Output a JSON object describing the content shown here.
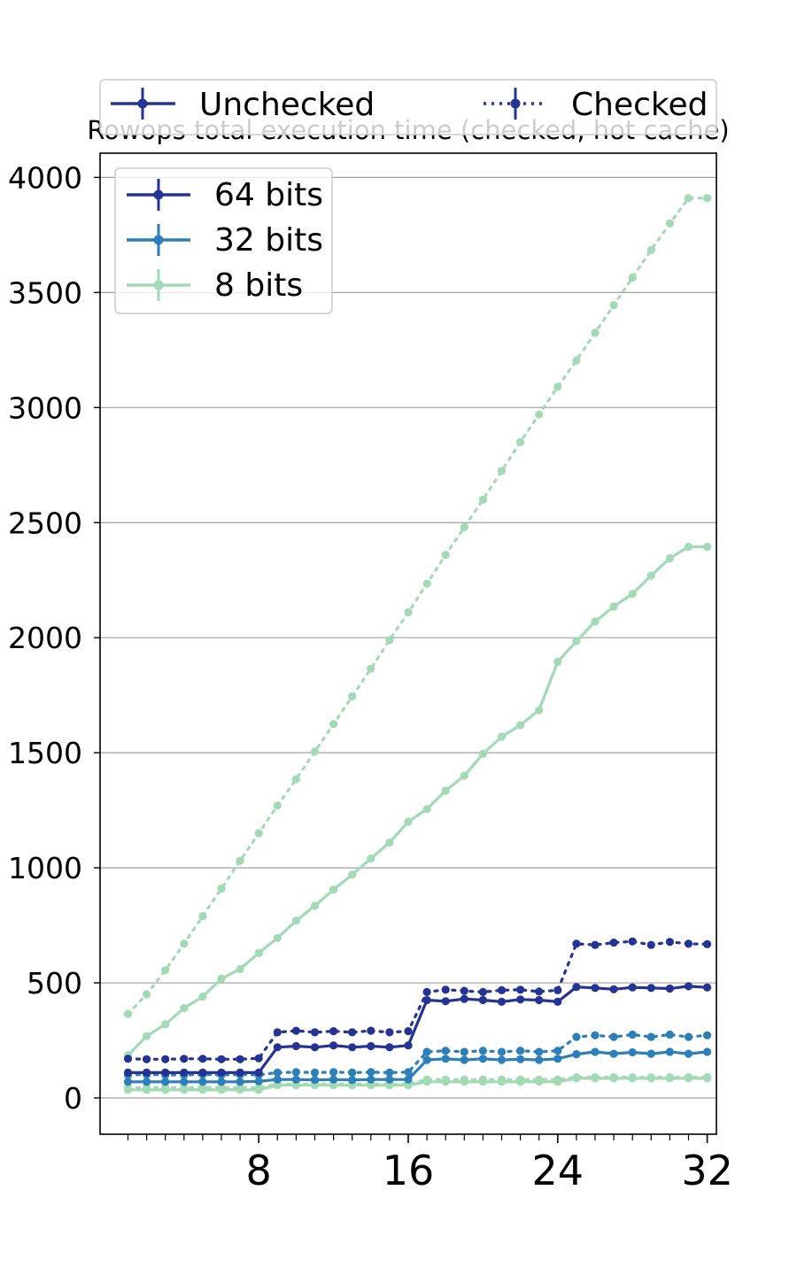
{
  "chart_data": {
    "type": "line",
    "title": "Rowops total execution time (checked, hot cache)",
    "xlabel": "",
    "ylabel": "",
    "xlim": [
      0,
      33
    ],
    "ylim": [
      -160,
      4100
    ],
    "x_ticks": [
      8,
      16,
      24,
      32
    ],
    "y_ticks": [
      0,
      500,
      1000,
      1500,
      2000,
      2500,
      3000,
      3500,
      4000
    ],
    "grid": "y",
    "x": [
      1,
      2,
      3,
      4,
      5,
      6,
      7,
      8,
      9,
      10,
      11,
      12,
      13,
      14,
      15,
      16,
      17,
      18,
      19,
      20,
      21,
      22,
      23,
      24,
      25,
      26,
      27,
      28,
      29,
      30,
      31,
      32
    ],
    "style_legend": {
      "placement": "top",
      "entries": [
        {
          "label": "Unchecked",
          "dash": "solid"
        },
        {
          "label": "Checked",
          "dash": "dotted"
        }
      ]
    },
    "size_legend": {
      "placement": "top-left",
      "entries": [
        {
          "label": "64 bits",
          "color": "#253494"
        },
        {
          "label": "32 bits",
          "color": "#2c7fb8"
        },
        {
          "label": "8 bits",
          "color": "#a1dab4"
        }
      ]
    },
    "series": [
      {
        "name": "64 bits",
        "mode": "Unchecked",
        "color": "#253494",
        "values": [
          110,
          110,
          110,
          110,
          110,
          110,
          110,
          110,
          220,
          225,
          220,
          228,
          220,
          225,
          220,
          228,
          425,
          420,
          430,
          425,
          418,
          428,
          425,
          418,
          482,
          478,
          472,
          480,
          478,
          475,
          485,
          480
        ]
      },
      {
        "name": "64 bits",
        "mode": "Checked",
        "color": "#253494",
        "values": [
          170,
          168,
          168,
          170,
          170,
          168,
          168,
          172,
          285,
          292,
          285,
          290,
          285,
          292,
          285,
          290,
          460,
          470,
          465,
          460,
          468,
          470,
          462,
          468,
          670,
          665,
          675,
          680,
          665,
          678,
          670,
          668
        ]
      },
      {
        "name": "32 bits",
        "mode": "Unchecked",
        "color": "#2c7fb8",
        "values": [
          70,
          70,
          70,
          70,
          70,
          70,
          70,
          72,
          80,
          80,
          78,
          80,
          78,
          80,
          80,
          80,
          165,
          170,
          165,
          170,
          165,
          168,
          165,
          170,
          190,
          200,
          192,
          198,
          192,
          200,
          192,
          200
        ]
      },
      {
        "name": "32 bits",
        "mode": "Checked",
        "color": "#2c7fb8",
        "values": [
          100,
          102,
          100,
          100,
          102,
          100,
          102,
          100,
          110,
          112,
          110,
          112,
          110,
          112,
          110,
          112,
          200,
          205,
          200,
          205,
          200,
          205,
          200,
          205,
          265,
          272,
          265,
          275,
          265,
          275,
          265,
          272
        ]
      },
      {
        "name": "8 bits",
        "mode": "Unchecked",
        "color": "#a1dab4",
        "values": [
          185,
          268,
          320,
          390,
          440,
          518,
          560,
          630,
          695,
          770,
          835,
          905,
          970,
          1040,
          1110,
          1200,
          1255,
          1335,
          1400,
          1495,
          1570,
          1620,
          1685,
          1895,
          1985,
          2070,
          2135,
          2190,
          2270,
          2345,
          2395,
          2395
        ]
      },
      {
        "name": "8 bits",
        "mode": "Checked",
        "color": "#a1dab4",
        "values": [
          365,
          450,
          555,
          670,
          790,
          910,
          1030,
          1150,
          1270,
          1385,
          1505,
          1625,
          1745,
          1865,
          1990,
          2110,
          2235,
          2360,
          2480,
          2600,
          2725,
          2850,
          2970,
          3090,
          3205,
          3325,
          3445,
          3565,
          3685,
          3800,
          3910,
          3910
        ]
      },
      {
        "name": "8 bits",
        "mode": "Unchecked",
        "color": "#a1dab4",
        "flat": true,
        "values": [
          35,
          35,
          35,
          35,
          35,
          35,
          35,
          35,
          55,
          55,
          55,
          55,
          55,
          55,
          55,
          55,
          70,
          70,
          70,
          70,
          70,
          70,
          70,
          70,
          85,
          85,
          85,
          85,
          85,
          85,
          85,
          85
        ]
      },
      {
        "name": "8 bits",
        "mode": "Checked",
        "color": "#a1dab4",
        "flat": true,
        "values": [
          45,
          45,
          45,
          45,
          45,
          45,
          45,
          45,
          60,
          60,
          60,
          60,
          60,
          60,
          60,
          60,
          80,
          80,
          80,
          80,
          80,
          80,
          80,
          80,
          90,
          90,
          90,
          90,
          90,
          90,
          90,
          90
        ]
      }
    ]
  }
}
